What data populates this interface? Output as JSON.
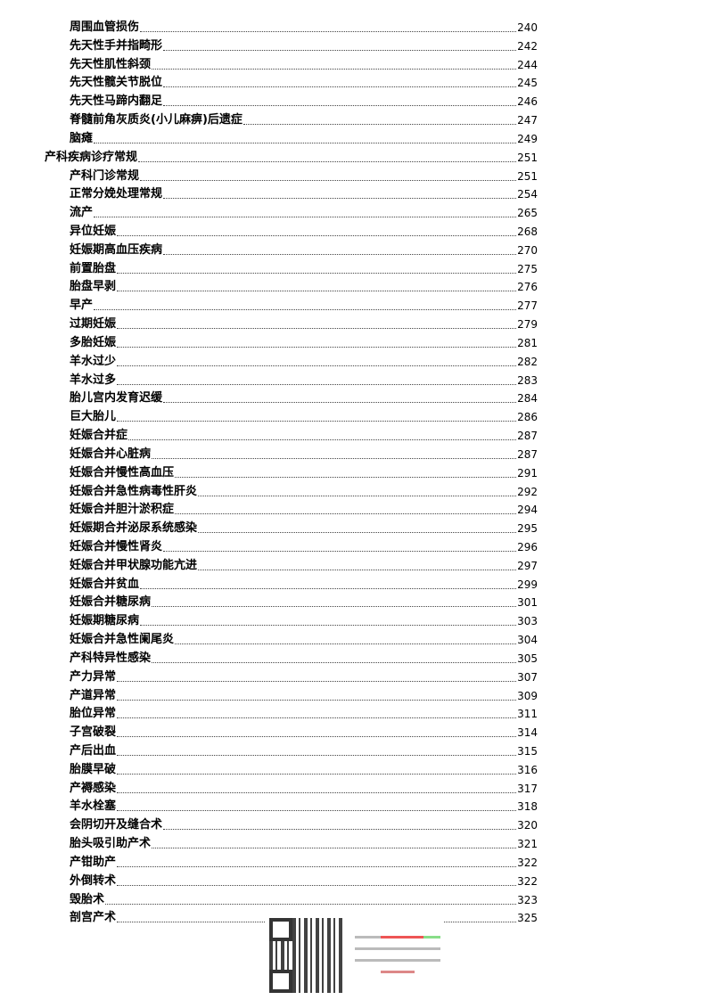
{
  "toc": [
    {
      "level": 2,
      "title": "周围血管损伤",
      "page": "240"
    },
    {
      "level": 2,
      "title": "先天性手并指畸形",
      "page": "242"
    },
    {
      "level": 2,
      "title": "先天性肌性斜颈",
      "page": "244"
    },
    {
      "level": 2,
      "title": "先天性髋关节脱位",
      "page": "245"
    },
    {
      "level": 2,
      "title": "先天性马蹄内翻足",
      "page": "246"
    },
    {
      "level": 2,
      "title": "脊髓前角灰质炎(小儿麻痹)后遗症",
      "page": "247"
    },
    {
      "level": 2,
      "title": "脑瘫",
      "page": "249"
    },
    {
      "level": 1,
      "title": "产科疾病诊疗常规",
      "page": "251"
    },
    {
      "level": 2,
      "title": "产科门诊常规",
      "page": "251"
    },
    {
      "level": 2,
      "title": "正常分娩处理常规",
      "page": "254"
    },
    {
      "level": 2,
      "title": "流产",
      "page": "265"
    },
    {
      "level": 2,
      "title": "异位妊娠",
      "page": "268"
    },
    {
      "level": 2,
      "title": "妊娠期高血压疾病",
      "page": "270"
    },
    {
      "level": 2,
      "title": "前置胎盘",
      "page": "275"
    },
    {
      "level": 2,
      "title": "胎盘早剥",
      "page": "276"
    },
    {
      "level": 2,
      "title": "早产",
      "page": "277"
    },
    {
      "level": 2,
      "title": "过期妊娠",
      "page": "279"
    },
    {
      "level": 2,
      "title": "多胎妊娠",
      "page": "281"
    },
    {
      "level": 2,
      "title": "羊水过少",
      "page": "282"
    },
    {
      "level": 2,
      "title": "羊水过多",
      "page": "283"
    },
    {
      "level": 2,
      "title": "胎儿宫内发育迟缓",
      "page": "284"
    },
    {
      "level": 2,
      "title": "巨大胎儿",
      "page": "286"
    },
    {
      "level": 2,
      "title": "妊娠合并症",
      "page": "287"
    },
    {
      "level": 2,
      "title": "妊娠合并心脏病",
      "page": "287"
    },
    {
      "level": 2,
      "title": "妊娠合并慢性高血压",
      "page": "291"
    },
    {
      "level": 2,
      "title": "妊娠合并急性病毒性肝炎",
      "page": "292"
    },
    {
      "level": 2,
      "title": "妊娠合并胆汁淤积症",
      "page": "294"
    },
    {
      "level": 2,
      "title": "妊娠期合并泌尿系统感染",
      "page": "295"
    },
    {
      "level": 2,
      "title": "妊娠合并慢性肾炎",
      "page": "296"
    },
    {
      "level": 2,
      "title": "妊娠合并甲状腺功能亢进",
      "page": "297"
    },
    {
      "level": 2,
      "title": "妊娠合并贫血",
      "page": "299"
    },
    {
      "level": 2,
      "title": "妊娠合并糖尿病",
      "page": "301"
    },
    {
      "level": 2,
      "title": "妊娠期糖尿病",
      "page": "303"
    },
    {
      "level": 2,
      "title": "妊娠合并急性阑尾炎",
      "page": "304"
    },
    {
      "level": 2,
      "title": "产科特异性感染",
      "page": "305"
    },
    {
      "level": 2,
      "title": "产力异常",
      "page": "307"
    },
    {
      "level": 2,
      "title": "产道异常",
      "page": "309"
    },
    {
      "level": 2,
      "title": "胎位异常",
      "page": "311"
    },
    {
      "level": 2,
      "title": "子宫破裂",
      "page": "314"
    },
    {
      "level": 2,
      "title": "产后出血",
      "page": "315"
    },
    {
      "level": 2,
      "title": "胎膜早破",
      "page": "316"
    },
    {
      "level": 2,
      "title": "产褥感染",
      "page": "317"
    },
    {
      "level": 2,
      "title": "羊水栓塞",
      "page": "318"
    },
    {
      "level": 2,
      "title": "会阴切开及缝合术",
      "page": "320"
    },
    {
      "level": 2,
      "title": "胎头吸引助产术",
      "page": "321"
    },
    {
      "level": 2,
      "title": "产钳助产",
      "page": "322"
    },
    {
      "level": 2,
      "title": "外倒转术",
      "page": "322"
    },
    {
      "level": 2,
      "title": "毁胎术",
      "page": "323"
    },
    {
      "level": 2,
      "title": "剖宫产术",
      "page": "325"
    }
  ]
}
